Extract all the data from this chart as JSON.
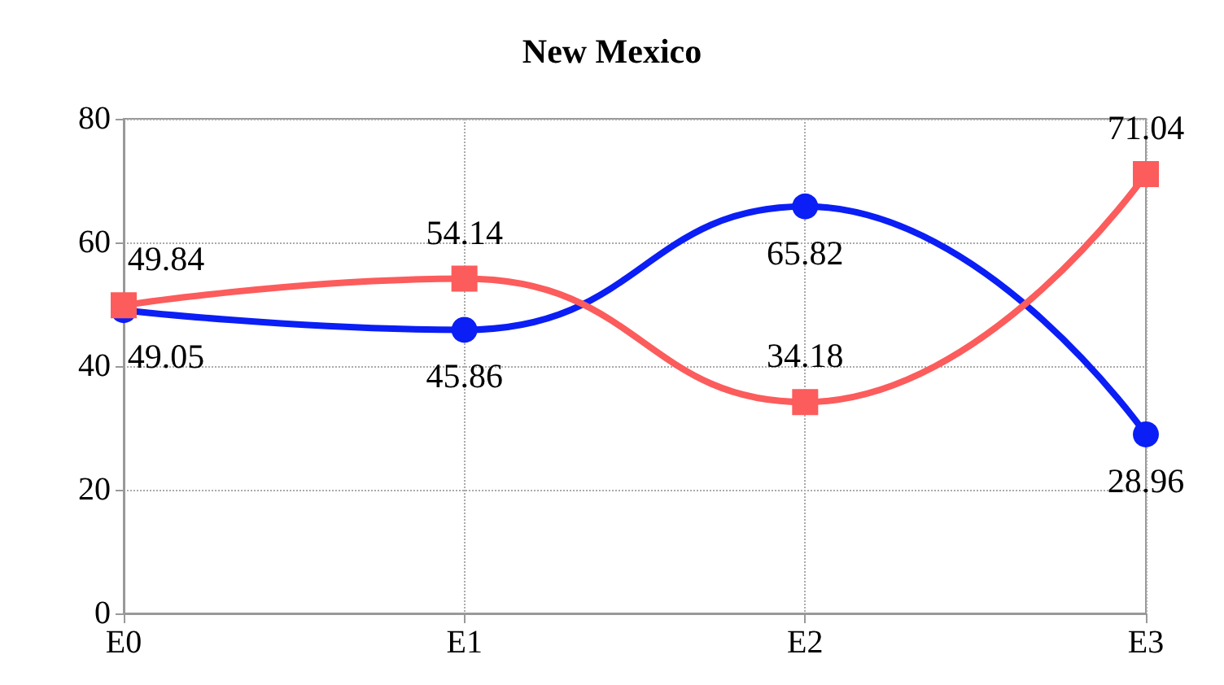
{
  "chart_data": {
    "type": "line",
    "title": "New Mexico",
    "categories": [
      "E0",
      "E1",
      "E2",
      "E3"
    ],
    "series": [
      {
        "color": "#0a1ef5",
        "marker": "circle",
        "values": [
          49.05,
          45.86,
          65.82,
          28.96
        ]
      },
      {
        "color": "#fc5c5c",
        "marker": "square",
        "values": [
          49.84,
          54.14,
          34.18,
          71.04
        ]
      }
    ],
    "ylim": [
      0,
      80
    ],
    "yticks": [
      0,
      20,
      40,
      60,
      80
    ],
    "grid": true,
    "data_labels": true,
    "line_style": "solid"
  }
}
